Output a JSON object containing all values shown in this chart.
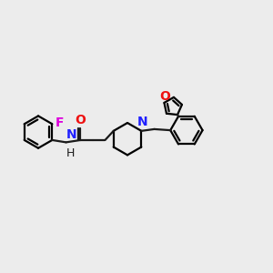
{
  "bg_color": "#ececec",
  "bond_color": "#1a1a1a",
  "N_color": "#2020ff",
  "O_color": "#ee1111",
  "F_color": "#dd00dd",
  "line_width": 1.6,
  "font_size": 9,
  "fig_size": [
    3.0,
    3.0
  ],
  "dpi": 100,
  "xlim": [
    0,
    12
  ],
  "ylim": [
    0,
    10
  ]
}
